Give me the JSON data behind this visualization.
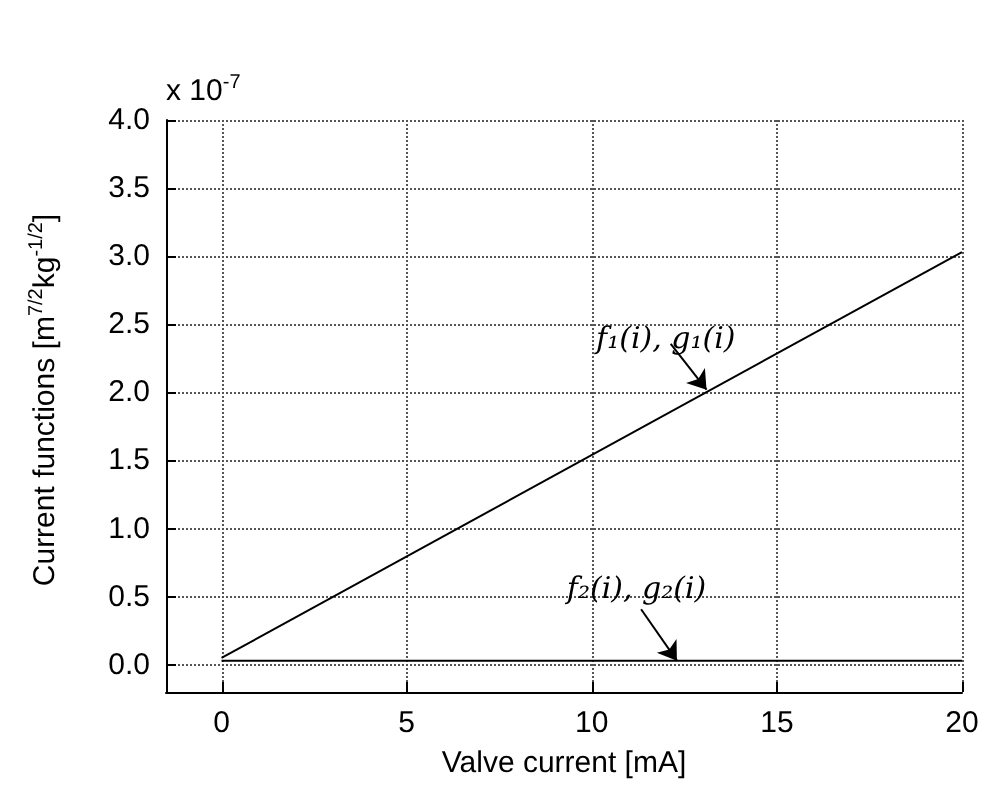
{
  "chart_data": {
    "type": "line",
    "xlabel": "Valve current [mA]",
    "ylabel": "Current functions [m$^{7/2}$kg$^{-1/2}$]",
    "x": [
      0,
      20
    ],
    "series": [
      {
        "color": "#000000",
        "values": [
          0.05,
          3.03
        ]
      },
      {
        "color": "#000000",
        "values": [
          0.03,
          0.03
        ]
      }
    ],
    "xlim": [
      -1.5,
      20
    ],
    "xticks": [
      0,
      5,
      10,
      15,
      20
    ],
    "ylim": [
      -0.2,
      4.0
    ],
    "yticks": [
      {
        "value": 0,
        "label": "0.0"
      },
      0.5,
      {
        "value": 1,
        "label": "1.0"
      },
      1.5,
      {
        "value": 2,
        "label": "2.0"
      },
      2.5,
      {
        "value": 3,
        "label": "3.0"
      },
      3.5,
      {
        "value": 4,
        "label": "4.0"
      }
    ],
    "annotations": [
      "x 10$^{-7}$",
      {
        "text": "f₁(i), g₁(i)",
        "x": 13.1,
        "y": 2.02
      },
      {
        "text": "f₂(i), g₂(i)",
        "x": 12.3,
        "y": 0.03
      }
    ],
    "grid": true,
    "marker": "none",
    "line_style": "solid"
  }
}
